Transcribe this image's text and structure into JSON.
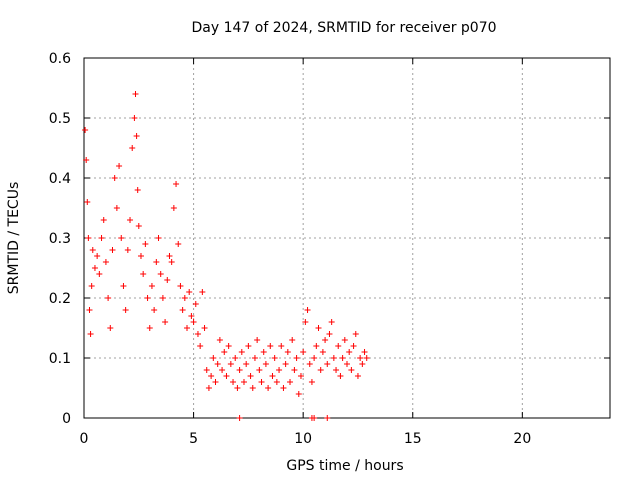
{
  "chart_data": {
    "type": "scatter",
    "title": "Day 147 of 2024, SRMTID for receiver p070",
    "xlabel": "GPS time / hours",
    "ylabel": "SRMTID / TECUs",
    "xlim": [
      0,
      24
    ],
    "ylim": [
      0,
      0.6
    ],
    "xticks": [
      0,
      5,
      10,
      15,
      20
    ],
    "yticks": [
      0,
      0.1,
      0.2,
      0.3,
      0.4,
      0.5,
      0.6
    ],
    "xtick_labels": [
      "0",
      "5",
      "10",
      "15",
      "20"
    ],
    "ytick_labels": [
      "0",
      "0.1",
      "0.2",
      "0.3",
      "0.4",
      "0.5",
      "0.6"
    ],
    "grid": true,
    "marker": "+",
    "color": "#ff0000",
    "series": [
      {
        "name": "SRMTID",
        "x": [
          0.05,
          0.1,
          0.15,
          0.2,
          0.25,
          0.3,
          0.35,
          0.4,
          0.5,
          0.6,
          0.7,
          0.8,
          0.9,
          1.0,
          1.1,
          1.2,
          1.3,
          1.4,
          1.5,
          1.6,
          1.7,
          1.8,
          1.9,
          2.0,
          2.1,
          2.2,
          2.3,
          2.35,
          2.4,
          2.45,
          2.5,
          2.6,
          2.7,
          2.8,
          2.9,
          3.0,
          3.1,
          3.2,
          3.3,
          3.4,
          3.5,
          3.6,
          3.7,
          3.8,
          3.9,
          4.0,
          4.1,
          4.2,
          4.3,
          4.4,
          4.5,
          4.6,
          4.7,
          4.8,
          4.9,
          5.0,
          5.1,
          5.2,
          5.3,
          5.4,
          5.5,
          5.6,
          5.7,
          5.8,
          5.9,
          6.0,
          6.1,
          6.2,
          6.3,
          6.4,
          6.5,
          6.6,
          6.7,
          6.8,
          6.9,
          7.0,
          7.1,
          7.2,
          7.3,
          7.4,
          7.5,
          7.6,
          7.7,
          7.8,
          7.9,
          8.0,
          8.1,
          8.2,
          8.3,
          8.4,
          8.5,
          8.6,
          8.7,
          8.8,
          8.9,
          9.0,
          9.1,
          9.2,
          9.3,
          9.4,
          9.5,
          9.6,
          9.7,
          9.8,
          9.9,
          10.0,
          10.1,
          10.2,
          10.3,
          10.4,
          10.5,
          10.6,
          10.7,
          10.8,
          10.9,
          11.0,
          11.1,
          11.2,
          11.3,
          11.4,
          11.5,
          11.6,
          11.7,
          11.8,
          11.9,
          12.0,
          12.1,
          12.2,
          12.3,
          12.4,
          12.5,
          12.6,
          12.7,
          12.8,
          12.9
        ],
        "y": [
          0.48,
          0.43,
          0.36,
          0.3,
          0.18,
          0.14,
          0.22,
          0.28,
          0.25,
          0.27,
          0.24,
          0.3,
          0.33,
          0.26,
          0.2,
          0.15,
          0.28,
          0.4,
          0.35,
          0.42,
          0.3,
          0.22,
          0.18,
          0.28,
          0.33,
          0.45,
          0.5,
          0.54,
          0.47,
          0.38,
          0.32,
          0.27,
          0.24,
          0.29,
          0.2,
          0.15,
          0.22,
          0.18,
          0.26,
          0.3,
          0.24,
          0.2,
          0.16,
          0.23,
          0.27,
          0.26,
          0.35,
          0.39,
          0.29,
          0.22,
          0.18,
          0.2,
          0.15,
          0.21,
          0.17,
          0.16,
          0.19,
          0.14,
          0.12,
          0.21,
          0.15,
          0.08,
          0.05,
          0.07,
          0.1,
          0.06,
          0.09,
          0.13,
          0.08,
          0.11,
          0.07,
          0.12,
          0.09,
          0.06,
          0.1,
          0.05,
          0.08,
          0.11,
          0.06,
          0.09,
          0.12,
          0.07,
          0.05,
          0.1,
          0.13,
          0.08,
          0.06,
          0.11,
          0.09,
          0.05,
          0.12,
          0.07,
          0.1,
          0.06,
          0.08,
          0.12,
          0.05,
          0.09,
          0.11,
          0.06,
          0.13,
          0.08,
          0.1,
          0.04,
          0.07,
          0.11,
          0.16,
          0.18,
          0.09,
          0.06,
          0.1,
          0.12,
          0.15,
          0.08,
          0.11,
          0.13,
          0.09,
          0.14,
          0.16,
          0.1,
          0.08,
          0.12,
          0.07,
          0.1,
          0.13,
          0.09,
          0.11,
          0.08,
          0.12,
          0.14,
          0.07,
          0.1,
          0.09,
          0.11,
          0.1
        ]
      }
    ],
    "zero_markers_x": [
      7.1,
      10.4,
      10.5,
      11.1
    ]
  }
}
